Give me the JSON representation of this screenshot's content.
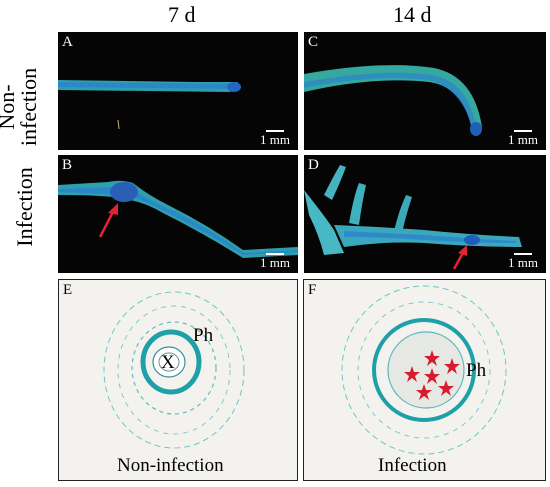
{
  "columns": [
    "7 d",
    "14 d"
  ],
  "rows": [
    "Non-\ninfection",
    "Infection"
  ],
  "panels": {
    "A": {
      "letter": "A",
      "scale": "1 mm"
    },
    "B": {
      "letter": "B",
      "scale": "1 mm"
    },
    "C": {
      "letter": "C",
      "scale": "1 mm"
    },
    "D": {
      "letter": "D",
      "scale": "1 mm"
    },
    "E": {
      "letter": "E",
      "caption": "Non-infection",
      "labels": [
        "Ph",
        "X"
      ]
    },
    "F": {
      "letter": "F",
      "caption": "Infection",
      "labels": [
        "Ph"
      ]
    }
  },
  "colors": {
    "stain": "#2aa3b0",
    "vascular": "#1f7fc8",
    "arrow": "#e02434",
    "star": "#d81b2e"
  }
}
